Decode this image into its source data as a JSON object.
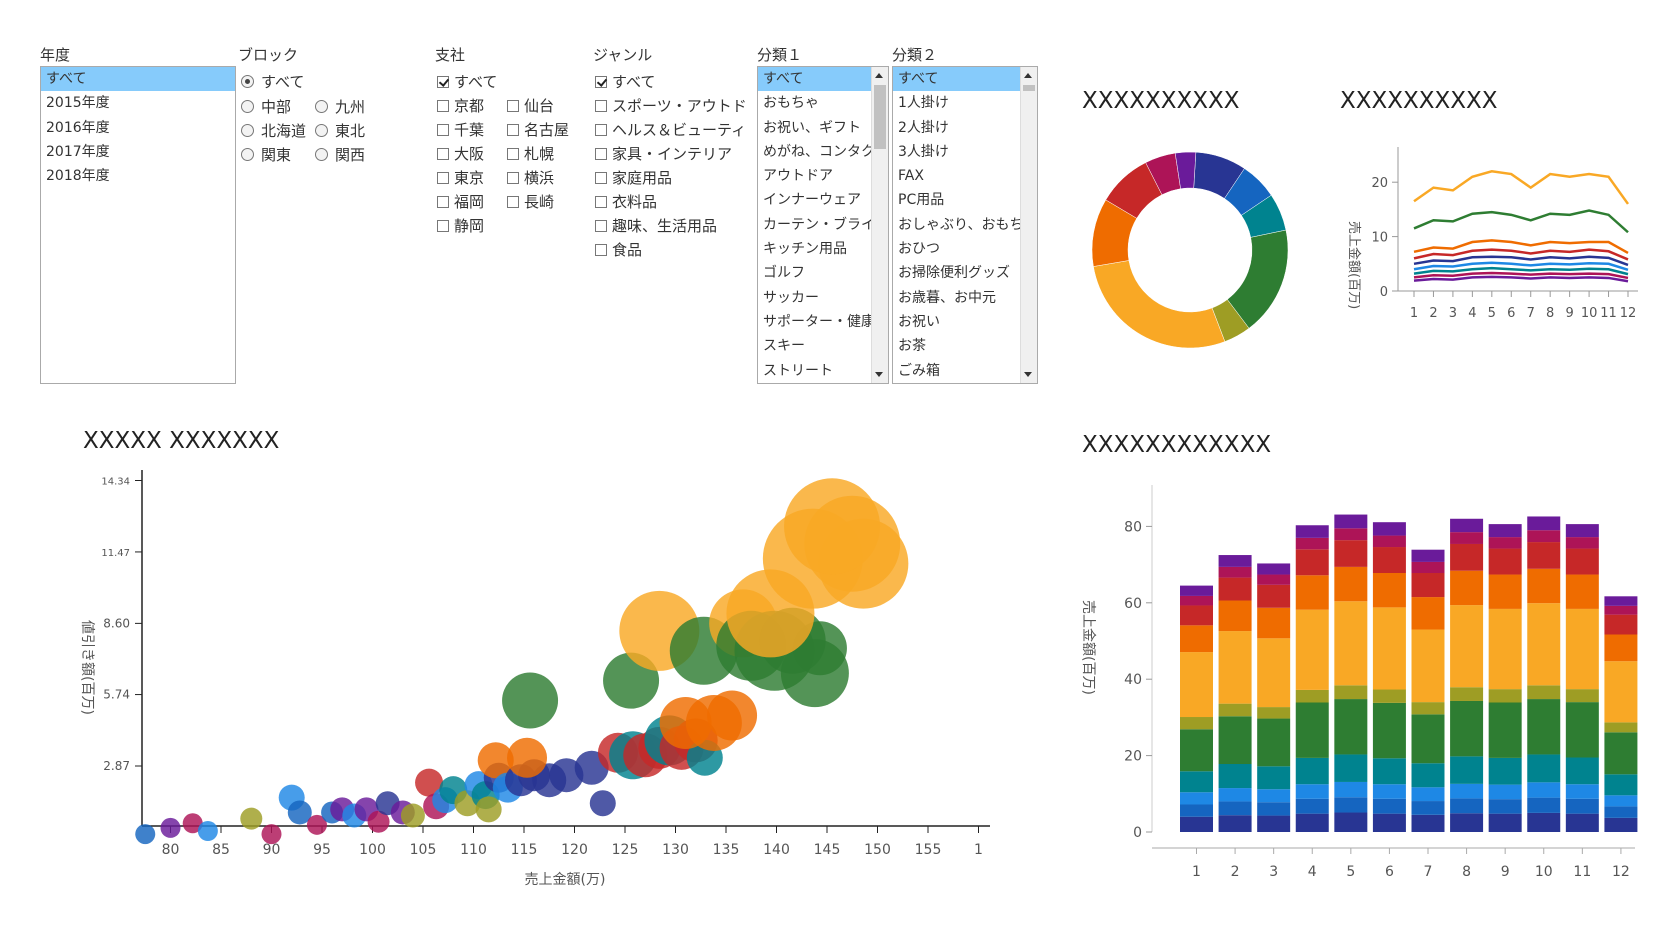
{
  "filters": {
    "year": {
      "label": "年度",
      "items": [
        "すべて",
        "2015年度",
        "2016年度",
        "2017年度",
        "2018年度"
      ],
      "selected": 0
    },
    "block": {
      "label": "ブロック",
      "items": [
        "すべて",
        "中部",
        "九州",
        "北海道",
        "東北",
        "関東",
        "関西"
      ],
      "selected": 0
    },
    "branch": {
      "label": "支社",
      "items": [
        "すべて",
        "京都",
        "仙台",
        "千葉",
        "名古屋",
        "大阪",
        "札幌",
        "東京",
        "横浜",
        "福岡",
        "長崎",
        "静岡"
      ],
      "checked": [
        0
      ]
    },
    "genre": {
      "label": "ジャンル",
      "items": [
        "すべて",
        "スポーツ・アウトド",
        "ヘルス＆ビューティ",
        "家具・インテリア",
        "家庭用品",
        "衣料品",
        "趣味、生活用品",
        "食品"
      ],
      "checked": [
        0
      ]
    },
    "cat1": {
      "label": "分類１",
      "items": [
        "すべて",
        "おもちゃ",
        "お祝い、ギフト",
        "めがね、コンタク",
        "アウトドア",
        "インナーウェア",
        "カーテン・ブライ",
        "キッチン用品",
        "ゴルフ",
        "サッカー",
        "サポーター・健康",
        "スキー",
        "ストリート"
      ],
      "selected": 0
    },
    "cat2": {
      "label": "分類２",
      "items": [
        "すべて",
        "1人掛け",
        "2人掛け",
        "3人掛け",
        "FAX",
        "PC用品",
        "おしゃぶり、おもち",
        "おひつ",
        "お掃除便利グッズ",
        "お歳暮、お中元",
        "お祝い",
        "お茶",
        "ごみ箱"
      ],
      "selected": 0
    }
  },
  "colors": [
    "#283593",
    "#1565c0",
    "#1e88e5",
    "#00838f",
    "#2e7d32",
    "#9e9d24",
    "#f9a825",
    "#ef6c00",
    "#c62828",
    "#ad1457",
    "#6a1b9a"
  ],
  "donut": {
    "title": "XXXXXXXXXX",
    "chart_data": {
      "type": "pie",
      "values": [
        7.5,
        5.5,
        5.5,
        16,
        4,
        25,
        10,
        8,
        4.5,
        3
      ]
    }
  },
  "line": {
    "title": "XXXXXXXXXX",
    "chart_data": {
      "type": "line",
      "x": [
        1,
        2,
        3,
        4,
        5,
        6,
        7,
        8,
        9,
        10,
        11,
        12
      ],
      "ylabel": "売上金額(百万)",
      "yticks": [
        0,
        10,
        20
      ],
      "ylim": [
        0,
        25
      ],
      "series": [
        {
          "values": [
            16.5,
            19,
            18.5,
            21,
            22,
            21.5,
            19,
            21.5,
            21,
            21.5,
            21,
            16
          ]
        },
        {
          "values": [
            11.5,
            13,
            12.8,
            14.2,
            14.5,
            14,
            13,
            14.2,
            14,
            14.8,
            14,
            10.8
          ]
        },
        {
          "values": [
            7.2,
            8,
            7.8,
            9,
            9.3,
            9,
            8.4,
            9,
            8.8,
            9,
            9,
            7
          ]
        },
        {
          "values": [
            6,
            6.8,
            6.6,
            7.4,
            7.6,
            7.4,
            6.9,
            7.4,
            7.2,
            7.6,
            7.3,
            5.8
          ]
        },
        {
          "values": [
            5,
            5.6,
            5.5,
            6.2,
            6.3,
            6.2,
            5.8,
            6.2,
            6,
            6.3,
            6.1,
            4.8
          ]
        },
        {
          "values": [
            4,
            4.6,
            4.5,
            5,
            5.2,
            5,
            4.7,
            5,
            4.9,
            5.1,
            5,
            3.9
          ]
        },
        {
          "values": [
            3.2,
            3.7,
            3.6,
            4,
            4.2,
            4,
            3.8,
            4,
            3.9,
            4.1,
            4,
            3.1
          ]
        },
        {
          "values": [
            2.5,
            2.9,
            2.8,
            3.2,
            3.3,
            3.2,
            3,
            3.2,
            3.1,
            3.2,
            3.1,
            2.4
          ]
        },
        {
          "values": [
            1.9,
            2.2,
            2.1,
            2.5,
            2.6,
            2.5,
            2.3,
            2.5,
            2.4,
            2.5,
            2.4,
            1.8
          ]
        }
      ]
    }
  },
  "bubble": {
    "title": "XXXXX XXXXXXX",
    "chart_data": {
      "type": "scatter",
      "xlabel": "売上金額(万)",
      "ylabel": "値引き額(百万)",
      "xticks": [
        80,
        85,
        90,
        95,
        100,
        105,
        110,
        115,
        120,
        125,
        130,
        135,
        140,
        145,
        150,
        155,
        1
      ],
      "yticks": [
        "2.87",
        "5.74",
        "8.60",
        "11.47",
        "14.34"
      ],
      "points": [
        [
          77.5,
          0.4,
          10,
          1
        ],
        [
          80,
          0.6,
          10,
          10
        ],
        [
          82.2,
          0.75,
          10,
          9
        ],
        [
          83.7,
          0.5,
          10,
          2
        ],
        [
          88,
          0.9,
          11,
          5
        ],
        [
          90,
          0.4,
          10,
          9
        ],
        [
          92,
          1.6,
          13,
          2
        ],
        [
          92.8,
          1.1,
          12,
          1
        ],
        [
          94.5,
          0.7,
          10,
          9
        ],
        [
          96,
          1.1,
          11,
          1
        ],
        [
          97,
          1.2,
          12,
          10
        ],
        [
          98.2,
          1.0,
          12,
          2
        ],
        [
          99.4,
          1.2,
          12,
          10
        ],
        [
          100.6,
          0.8,
          11,
          9
        ],
        [
          101.5,
          1.4,
          12,
          0
        ],
        [
          103,
          1.1,
          12,
          10
        ],
        [
          104,
          1.0,
          12,
          5
        ],
        [
          105.6,
          2.2,
          14,
          8
        ],
        [
          106.3,
          1.3,
          13,
          9
        ],
        [
          107.2,
          1.5,
          13,
          2
        ],
        [
          108,
          1.9,
          14,
          3
        ],
        [
          109.4,
          1.4,
          13,
          5
        ],
        [
          110.5,
          2.1,
          14,
          2
        ],
        [
          111.2,
          1.7,
          14,
          3
        ],
        [
          111.5,
          1.2,
          13,
          5
        ],
        [
          112.5,
          2.4,
          15,
          0
        ],
        [
          112.2,
          3.1,
          18,
          7
        ],
        [
          113.4,
          2.0,
          15,
          2
        ],
        [
          114.7,
          2.3,
          16,
          0
        ],
        [
          116,
          2.5,
          16,
          0
        ],
        [
          117.5,
          2.3,
          17,
          0
        ],
        [
          119.2,
          2.5,
          17,
          0
        ],
        [
          121.7,
          2.8,
          17,
          0
        ],
        [
          122.8,
          1.4,
          13,
          0
        ],
        [
          115.3,
          3.2,
          20,
          7
        ],
        [
          115.6,
          5.5,
          28,
          4
        ],
        [
          124.3,
          3.4,
          20,
          8
        ],
        [
          125.8,
          3.3,
          24,
          3
        ],
        [
          127,
          3.3,
          22,
          8
        ],
        [
          128.4,
          3.6,
          21,
          8
        ],
        [
          129.4,
          3.9,
          25,
          3
        ],
        [
          130.6,
          3.6,
          22,
          8
        ],
        [
          132,
          3.9,
          22,
          8
        ],
        [
          132.9,
          3.2,
          18,
          3
        ],
        [
          131,
          4.6,
          26,
          7
        ],
        [
          133.8,
          4.6,
          28,
          7
        ],
        [
          135.6,
          4.9,
          25,
          7
        ],
        [
          125.6,
          6.3,
          28,
          4
        ],
        [
          128.4,
          8.3,
          40,
          6
        ],
        [
          132.8,
          7.5,
          34,
          4
        ],
        [
          136.7,
          8.6,
          34,
          6
        ],
        [
          137.5,
          7.7,
          35,
          4
        ],
        [
          139.8,
          7.5,
          40,
          4
        ],
        [
          141.6,
          7.9,
          33,
          4
        ],
        [
          144.3,
          7.6,
          27,
          4
        ],
        [
          143.8,
          6.6,
          34,
          4
        ],
        [
          139.4,
          9.0,
          44,
          6
        ],
        [
          143.6,
          11.2,
          50,
          6
        ],
        [
          147.5,
          11.8,
          48,
          6
        ],
        [
          148.6,
          11.0,
          45,
          6
        ],
        [
          145.5,
          12.5,
          48,
          6
        ]
      ]
    }
  },
  "stacked": {
    "title": "XXXXXXXXXXXX",
    "chart_data": {
      "type": "bar",
      "categories": [
        "1",
        "2",
        "3",
        "4",
        "5",
        "6",
        "7",
        "8",
        "9",
        "10",
        "11",
        "12"
      ],
      "ylabel": "売上金額(百万)",
      "yticks": [
        0,
        20,
        40,
        60,
        80
      ],
      "ylim": [
        0,
        90
      ],
      "series": [
        {
          "values": [
            4.0,
            4.4,
            4.3,
            4.8,
            5.1,
            4.8,
            4.5,
            4.9,
            4.8,
            5.0,
            4.8,
            3.7
          ]
        },
        {
          "values": [
            3.2,
            3.6,
            3.5,
            3.9,
            4.0,
            3.9,
            3.6,
            3.9,
            3.8,
            4.0,
            3.9,
            3.0
          ]
        },
        {
          "values": [
            3.2,
            3.5,
            3.4,
            3.8,
            4.0,
            3.8,
            3.6,
            3.8,
            3.8,
            4.0,
            3.8,
            2.9
          ]
        },
        {
          "values": [
            5.5,
            6.3,
            6.0,
            6.9,
            7.2,
            6.8,
            6.3,
            7.2,
            7.0,
            7.3,
            7.0,
            5.5
          ]
        },
        {
          "values": [
            11.0,
            12.5,
            12.5,
            14.5,
            14.5,
            14.5,
            12.8,
            14.5,
            14.5,
            14.5,
            14.5,
            11.0
          ]
        },
        {
          "values": [
            3.2,
            3.3,
            3.0,
            3.3,
            3.6,
            3.5,
            3.2,
            3.6,
            3.5,
            3.6,
            3.4,
            2.6
          ]
        },
        {
          "values": [
            17.0,
            19.0,
            18.0,
            21.0,
            22.0,
            21.5,
            19.0,
            21.5,
            21.0,
            21.5,
            21.0,
            16.0
          ]
        },
        {
          "values": [
            7.0,
            8.0,
            8.0,
            9.0,
            9.0,
            9.0,
            8.5,
            9.0,
            9.0,
            9.0,
            9.0,
            7.0
          ]
        },
        {
          "values": [
            5.2,
            6.0,
            6.0,
            6.8,
            7.0,
            6.8,
            6.3,
            7.0,
            6.8,
            7.0,
            6.8,
            5.2
          ]
        },
        {
          "values": [
            2.5,
            2.8,
            2.7,
            3.0,
            3.1,
            3.0,
            2.9,
            3.1,
            3.0,
            3.1,
            3.0,
            2.3
          ]
        },
        {
          "values": [
            2.7,
            3.1,
            2.9,
            3.3,
            3.6,
            3.5,
            3.2,
            3.5,
            3.4,
            3.6,
            3.4,
            2.5
          ]
        }
      ]
    }
  }
}
